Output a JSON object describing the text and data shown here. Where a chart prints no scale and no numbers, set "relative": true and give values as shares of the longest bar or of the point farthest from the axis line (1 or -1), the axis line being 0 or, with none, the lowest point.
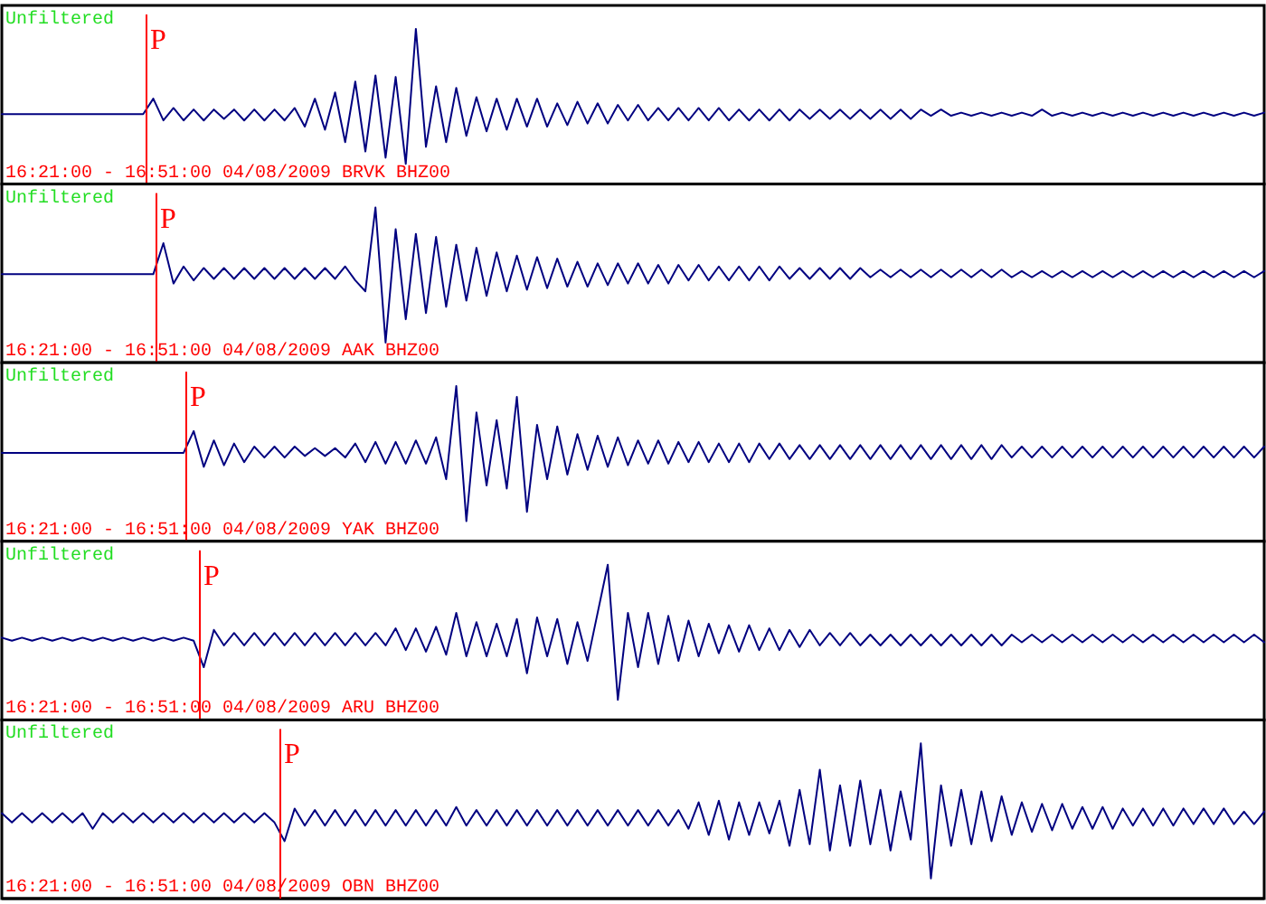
{
  "chart_data": [
    {
      "type": "line",
      "title": "Unfiltered",
      "annotations": [
        "P",
        "16:21:00 - 16:51:00 04/08/2009 BRVK BHZ00"
      ],
      "relative": true,
      "categories": [
        null,
        null,
        null,
        null,
        null,
        null,
        null,
        null,
        null,
        null,
        null,
        null,
        null,
        null,
        null,
        null,
        null,
        null,
        null,
        null,
        null,
        null,
        null,
        null,
        null,
        null,
        null,
        null,
        null,
        null,
        null,
        null,
        null,
        null,
        null,
        null,
        null,
        null,
        null,
        null,
        null,
        null,
        null,
        null,
        null,
        null,
        null,
        null,
        null,
        null,
        null,
        null,
        null,
        null,
        null,
        null,
        null,
        null,
        null,
        null,
        null,
        null,
        null,
        null,
        null,
        null,
        null,
        null,
        null,
        null,
        null,
        null,
        null,
        null,
        null,
        null,
        null,
        null,
        null,
        null,
        null,
        null,
        null,
        null,
        null,
        null,
        null,
        null,
        null,
        null,
        null,
        null,
        null,
        null,
        null,
        null,
        null,
        null,
        null,
        null,
        null,
        null,
        null,
        null,
        null,
        null,
        null,
        null,
        null,
        null,
        null,
        null,
        null,
        null,
        null,
        null,
        null,
        null,
        null,
        null,
        null,
        null,
        null,
        null,
        null,
        null
      ],
      "series": [
        {
          "color": "#000080",
          "values": [
            0.45,
            0.45,
            0.45,
            0.45,
            0.45,
            0.45,
            0.45,
            0.45,
            0.45,
            0.45,
            0.45,
            0.45,
            0.45,
            0.45,
            0.45,
            0.55,
            0.41,
            0.49,
            0.41,
            0.48,
            0.41,
            0.48,
            0.42,
            0.48,
            0.41,
            0.48,
            0.41,
            0.48,
            0.41,
            0.49,
            0.37,
            0.55,
            0.35,
            0.59,
            0.27,
            0.66,
            0.21,
            0.7,
            0.17,
            0.69,
            0.13,
            1,
            0.24,
            0.63,
            0.27,
            0.62,
            0.31,
            0.56,
            0.34,
            0.55,
            0.35,
            0.55,
            0.37,
            0.55,
            0.37,
            0.52,
            0.38,
            0.53,
            0.39,
            0.52,
            0.39,
            0.51,
            0.41,
            0.51,
            0.41,
            0.49,
            0.41,
            0.49,
            0.41,
            0.49,
            0.41,
            0.49,
            0.41,
            0.48,
            0.41,
            0.48,
            0.41,
            0.48,
            0.41,
            0.48,
            0.42,
            0.48,
            0.42,
            0.48,
            0.42,
            0.48,
            0.42,
            0.48,
            0.42,
            0.48,
            0.42,
            0.48,
            0.44,
            0.48,
            0.44,
            0.46,
            0.44,
            0.46,
            0.44,
            0.46,
            0.44,
            0.46,
            0.44,
            0.48,
            0.44,
            0.46,
            0.44,
            0.46,
            0.44,
            0.46,
            0.44,
            0.46,
            0.44,
            0.46,
            0.44,
            0.46,
            0.44,
            0.46,
            0.44,
            0.46,
            0.44,
            0.46,
            0.44,
            0.46,
            0.44,
            0.46
          ]
        }
      ]
    },
    {
      "type": "line",
      "title": "Unfiltered",
      "annotations": [
        "P",
        "16:21:00 - 16:51:00 04/08/2009 AAK BHZ00"
      ],
      "relative": true,
      "categories": [
        null,
        null,
        null,
        null,
        null,
        null,
        null,
        null,
        null,
        null,
        null,
        null,
        null,
        null,
        null,
        null,
        null,
        null,
        null,
        null,
        null,
        null,
        null,
        null,
        null,
        null,
        null,
        null,
        null,
        null,
        null,
        null,
        null,
        null,
        null,
        null,
        null,
        null,
        null,
        null,
        null,
        null,
        null,
        null,
        null,
        null,
        null,
        null,
        null,
        null,
        null,
        null,
        null,
        null,
        null,
        null,
        null,
        null,
        null,
        null,
        null,
        null,
        null,
        null,
        null,
        null,
        null,
        null,
        null,
        null,
        null,
        null,
        null,
        null,
        null,
        null,
        null,
        null,
        null,
        null,
        null,
        null,
        null,
        null,
        null,
        null,
        null,
        null,
        null,
        null,
        null,
        null,
        null,
        null,
        null,
        null,
        null,
        null,
        null,
        null,
        null,
        null,
        null,
        null,
        null,
        null,
        null,
        null,
        null,
        null,
        null,
        null,
        null,
        null,
        null,
        null,
        null,
        null,
        null,
        null,
        null,
        null,
        null,
        null,
        null,
        null
      ],
      "series": [
        {
          "color": "#000080",
          "values": [
            0.57,
            0.57,
            0.57,
            0.57,
            0.57,
            0.57,
            0.57,
            0.57,
            0.57,
            0.57,
            0.57,
            0.57,
            0.57,
            0.57,
            0.57,
            0.57,
            0.77,
            0.51,
            0.62,
            0.53,
            0.61,
            0.54,
            0.61,
            0.54,
            0.61,
            0.54,
            0.61,
            0.54,
            0.61,
            0.54,
            0.61,
            0.54,
            0.61,
            0.54,
            0.62,
            0.53,
            0.46,
            1,
            0.13,
            0.86,
            0.28,
            0.83,
            0.32,
            0.81,
            0.36,
            0.76,
            0.4,
            0.74,
            0.43,
            0.71,
            0.46,
            0.69,
            0.47,
            0.68,
            0.48,
            0.67,
            0.49,
            0.65,
            0.49,
            0.64,
            0.5,
            0.64,
            0.51,
            0.64,
            0.51,
            0.63,
            0.51,
            0.63,
            0.53,
            0.63,
            0.53,
            0.62,
            0.53,
            0.62,
            0.53,
            0.62,
            0.53,
            0.62,
            0.54,
            0.61,
            0.54,
            0.61,
            0.54,
            0.61,
            0.54,
            0.61,
            0.55,
            0.6,
            0.55,
            0.6,
            0.55,
            0.6,
            0.55,
            0.6,
            0.55,
            0.6,
            0.55,
            0.6,
            0.55,
            0.6,
            0.55,
            0.59,
            0.55,
            0.59,
            0.55,
            0.59,
            0.55,
            0.59,
            0.55,
            0.59,
            0.55,
            0.59,
            0.55,
            0.59,
            0.55,
            0.59,
            0.55,
            0.59,
            0.55,
            0.59,
            0.55,
            0.59,
            0.55,
            0.59,
            0.55,
            0.59
          ]
        }
      ]
    },
    {
      "type": "line",
      "title": "Unfiltered",
      "annotations": [
        "P",
        "16:21:00 - 16:51:00 04/08/2009 YAK BHZ00"
      ],
      "relative": true,
      "categories": [
        null,
        null,
        null,
        null,
        null,
        null,
        null,
        null,
        null,
        null,
        null,
        null,
        null,
        null,
        null,
        null,
        null,
        null,
        null,
        null,
        null,
        null,
        null,
        null,
        null,
        null,
        null,
        null,
        null,
        null,
        null,
        null,
        null,
        null,
        null,
        null,
        null,
        null,
        null,
        null,
        null,
        null,
        null,
        null,
        null,
        null,
        null,
        null,
        null,
        null,
        null,
        null,
        null,
        null,
        null,
        null,
        null,
        null,
        null,
        null,
        null,
        null,
        null,
        null,
        null,
        null,
        null,
        null,
        null,
        null,
        null,
        null,
        null,
        null,
        null,
        null,
        null,
        null,
        null,
        null,
        null,
        null,
        null,
        null,
        null,
        null,
        null,
        null,
        null,
        null,
        null,
        null,
        null,
        null,
        null,
        null,
        null,
        null,
        null,
        null,
        null,
        null,
        null,
        null,
        null,
        null,
        null,
        null,
        null,
        null,
        null,
        null,
        null,
        null,
        null,
        null,
        null,
        null,
        null,
        null,
        null,
        null,
        null,
        null,
        null,
        null
      ],
      "series": [
        {
          "color": "#000080",
          "values": [
            0.57,
            0.57,
            0.57,
            0.57,
            0.57,
            0.57,
            0.57,
            0.57,
            0.57,
            0.57,
            0.57,
            0.57,
            0.57,
            0.57,
            0.57,
            0.57,
            0.57,
            0.57,
            0.57,
            0.71,
            0.48,
            0.65,
            0.49,
            0.63,
            0.51,
            0.61,
            0.54,
            0.61,
            0.54,
            0.61,
            0.55,
            0.6,
            0.55,
            0.6,
            0.54,
            0.63,
            0.51,
            0.64,
            0.5,
            0.64,
            0.5,
            0.65,
            0.5,
            0.67,
            0.4,
            1,
            0.13,
            0.83,
            0.36,
            0.78,
            0.34,
            0.93,
            0.19,
            0.75,
            0.4,
            0.74,
            0.43,
            0.69,
            0.46,
            0.68,
            0.48,
            0.67,
            0.49,
            0.65,
            0.5,
            0.65,
            0.5,
            0.64,
            0.51,
            0.64,
            0.51,
            0.63,
            0.51,
            0.63,
            0.51,
            0.63,
            0.53,
            0.63,
            0.53,
            0.62,
            0.53,
            0.62,
            0.53,
            0.62,
            0.53,
            0.62,
            0.53,
            0.62,
            0.53,
            0.62,
            0.53,
            0.62,
            0.53,
            0.62,
            0.53,
            0.62,
            0.53,
            0.62,
            0.53,
            0.62,
            0.54,
            0.61,
            0.54,
            0.61,
            0.54,
            0.61,
            0.54,
            0.61,
            0.54,
            0.61,
            0.54,
            0.61,
            0.54,
            0.61,
            0.54,
            0.61,
            0.54,
            0.61,
            0.54,
            0.61,
            0.54,
            0.61,
            0.54,
            0.61,
            0.54,
            0.61
          ]
        }
      ]
    },
    {
      "type": "line",
      "title": "Unfiltered",
      "annotations": [
        "P",
        "16:21:00 - 16:51:00 04/08/2009 ARU BHZ00"
      ],
      "relative": true,
      "categories": [
        null,
        null,
        null,
        null,
        null,
        null,
        null,
        null,
        null,
        null,
        null,
        null,
        null,
        null,
        null,
        null,
        null,
        null,
        null,
        null,
        null,
        null,
        null,
        null,
        null,
        null,
        null,
        null,
        null,
        null,
        null,
        null,
        null,
        null,
        null,
        null,
        null,
        null,
        null,
        null,
        null,
        null,
        null,
        null,
        null,
        null,
        null,
        null,
        null,
        null,
        null,
        null,
        null,
        null,
        null,
        null,
        null,
        null,
        null,
        null,
        null,
        null,
        null,
        null,
        null,
        null,
        null,
        null,
        null,
        null,
        null,
        null,
        null,
        null,
        null,
        null,
        null,
        null,
        null,
        null,
        null,
        null,
        null,
        null,
        null,
        null,
        null,
        null,
        null,
        null,
        null,
        null,
        null,
        null,
        null,
        null,
        null,
        null,
        null,
        null,
        null,
        null,
        null,
        null,
        null,
        null,
        null,
        null,
        null,
        null,
        null,
        null,
        null,
        null,
        null,
        null,
        null,
        null,
        null,
        null,
        null,
        null,
        null,
        null,
        null,
        null
      ],
      "series": [
        {
          "color": "#000080",
          "values": [
            0.53,
            0.51,
            0.53,
            0.51,
            0.53,
            0.51,
            0.53,
            0.51,
            0.53,
            0.51,
            0.53,
            0.51,
            0.53,
            0.51,
            0.53,
            0.51,
            0.53,
            0.51,
            0.53,
            0.51,
            0.34,
            0.58,
            0.48,
            0.56,
            0.48,
            0.56,
            0.48,
            0.56,
            0.48,
            0.56,
            0.48,
            0.56,
            0.48,
            0.56,
            0.48,
            0.56,
            0.48,
            0.56,
            0.48,
            0.59,
            0.45,
            0.59,
            0.44,
            0.6,
            0.42,
            0.69,
            0.41,
            0.63,
            0.41,
            0.62,
            0.41,
            0.65,
            0.3,
            0.66,
            0.41,
            0.65,
            0.36,
            0.63,
            0.38,
            0.69,
            1,
            0.13,
            0.69,
            0.34,
            0.69,
            0.36,
            0.67,
            0.38,
            0.64,
            0.41,
            0.62,
            0.43,
            0.61,
            0.44,
            0.61,
            0.45,
            0.59,
            0.45,
            0.58,
            0.47,
            0.58,
            0.48,
            0.56,
            0.48,
            0.56,
            0.48,
            0.55,
            0.48,
            0.55,
            0.48,
            0.55,
            0.48,
            0.55,
            0.48,
            0.55,
            0.48,
            0.55,
            0.48,
            0.55,
            0.48,
            0.55,
            0.5,
            0.55,
            0.5,
            0.55,
            0.5,
            0.55,
            0.5,
            0.55,
            0.5,
            0.55,
            0.5,
            0.55,
            0.5,
            0.55,
            0.5,
            0.55,
            0.5,
            0.55,
            0.5,
            0.55,
            0.5,
            0.55,
            0.5,
            0.55,
            0.5
          ]
        }
      ]
    },
    {
      "type": "line",
      "title": "Unfiltered",
      "annotations": [
        "P",
        "16:21:00 - 16:51:00 04/08/2009 OBN BHZ00"
      ],
      "relative": true,
      "categories": [
        null,
        null,
        null,
        null,
        null,
        null,
        null,
        null,
        null,
        null,
        null,
        null,
        null,
        null,
        null,
        null,
        null,
        null,
        null,
        null,
        null,
        null,
        null,
        null,
        null,
        null,
        null,
        null,
        null,
        null,
        null,
        null,
        null,
        null,
        null,
        null,
        null,
        null,
        null,
        null,
        null,
        null,
        null,
        null,
        null,
        null,
        null,
        null,
        null,
        null,
        null,
        null,
        null,
        null,
        null,
        null,
        null,
        null,
        null,
        null,
        null,
        null,
        null,
        null,
        null,
        null,
        null,
        null,
        null,
        null,
        null,
        null,
        null,
        null,
        null,
        null,
        null,
        null,
        null,
        null,
        null,
        null,
        null,
        null,
        null,
        null,
        null,
        null,
        null,
        null,
        null,
        null,
        null,
        null,
        null,
        null,
        null,
        null,
        null,
        null,
        null,
        null,
        null,
        null,
        null,
        null,
        null,
        null,
        null,
        null,
        null,
        null,
        null,
        null,
        null,
        null,
        null,
        null,
        null,
        null,
        null,
        null,
        null,
        null,
        null,
        null
      ],
      "series": [
        {
          "color": "#000080",
          "values": [
            0.55,
            0.49,
            0.55,
            0.49,
            0.55,
            0.49,
            0.55,
            0.49,
            0.55,
            0.45,
            0.55,
            0.49,
            0.55,
            0.49,
            0.55,
            0.49,
            0.55,
            0.49,
            0.55,
            0.49,
            0.55,
            0.49,
            0.55,
            0.49,
            0.55,
            0.49,
            0.55,
            0.49,
            0.37,
            0.58,
            0.47,
            0.57,
            0.47,
            0.57,
            0.47,
            0.57,
            0.47,
            0.57,
            0.47,
            0.57,
            0.47,
            0.57,
            0.47,
            0.57,
            0.47,
            0.59,
            0.47,
            0.57,
            0.47,
            0.57,
            0.47,
            0.57,
            0.47,
            0.57,
            0.47,
            0.57,
            0.47,
            0.57,
            0.47,
            0.57,
            0.47,
            0.57,
            0.47,
            0.57,
            0.47,
            0.57,
            0.47,
            0.57,
            0.45,
            0.62,
            0.41,
            0.63,
            0.38,
            0.62,
            0.41,
            0.62,
            0.42,
            0.63,
            0.34,
            0.7,
            0.35,
            0.83,
            0.31,
            0.73,
            0.34,
            0.76,
            0.35,
            0.7,
            0.31,
            0.69,
            0.38,
            1,
            0.13,
            0.73,
            0.34,
            0.7,
            0.35,
            0.69,
            0.37,
            0.66,
            0.41,
            0.62,
            0.43,
            0.61,
            0.44,
            0.61,
            0.45,
            0.59,
            0.45,
            0.59,
            0.45,
            0.58,
            0.47,
            0.58,
            0.47,
            0.58,
            0.47,
            0.58,
            0.48,
            0.58,
            0.48,
            0.58,
            0.48,
            0.56,
            0.48,
            0.56
          ]
        }
      ]
    }
  ]
}
